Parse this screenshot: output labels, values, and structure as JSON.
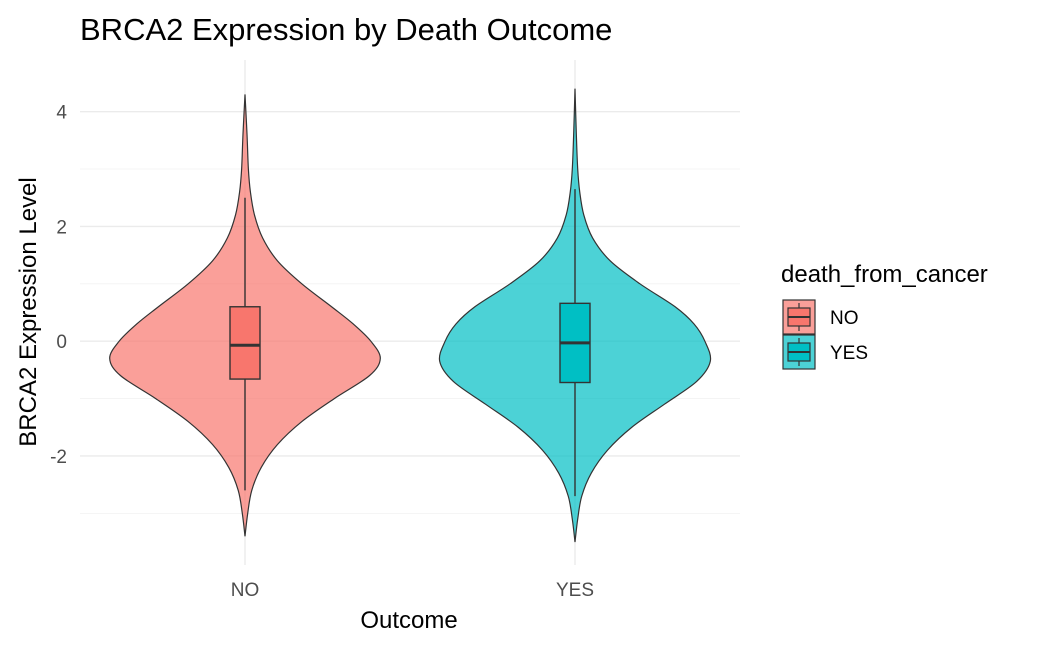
{
  "chart_data": {
    "type": "violin",
    "title": "BRCA2 Expression by Death Outcome",
    "xlabel": "Outcome",
    "ylabel": "BRCA2 Expression Level",
    "categories": [
      "NO",
      "YES"
    ],
    "ylim": [
      -3.9,
      4.9
    ],
    "yticks": [
      -2,
      0,
      2,
      4
    ],
    "grid": true,
    "legend": {
      "title": "death_from_cancer",
      "position": "right",
      "entries": [
        "NO",
        "YES"
      ]
    },
    "colors": {
      "NO": "#F8766D",
      "YES": "#00BFC4"
    },
    "series": [
      {
        "name": "NO",
        "range": [
          -3.4,
          4.3
        ],
        "box": {
          "q1": -0.66,
          "median": -0.07,
          "q3": 0.6,
          "whisker_low": -2.6,
          "whisker_high": 2.5
        },
        "density": [
          [
            -3.4,
            0.0
          ],
          [
            -3.0,
            0.02
          ],
          [
            -2.6,
            0.05
          ],
          [
            -2.2,
            0.12
          ],
          [
            -1.8,
            0.24
          ],
          [
            -1.4,
            0.42
          ],
          [
            -1.0,
            0.66
          ],
          [
            -0.6,
            0.92
          ],
          [
            -0.3,
            1.0
          ],
          [
            0.0,
            0.93
          ],
          [
            0.3,
            0.8
          ],
          [
            0.6,
            0.64
          ],
          [
            1.0,
            0.42
          ],
          [
            1.4,
            0.24
          ],
          [
            1.8,
            0.13
          ],
          [
            2.2,
            0.07
          ],
          [
            2.6,
            0.04
          ],
          [
            3.0,
            0.025
          ],
          [
            3.6,
            0.015
          ],
          [
            4.3,
            0.0
          ]
        ]
      },
      {
        "name": "YES",
        "range": [
          -3.5,
          4.4
        ],
        "box": {
          "q1": -0.72,
          "median": -0.03,
          "q3": 0.66,
          "whisker_low": -2.7,
          "whisker_high": 2.65
        },
        "density": [
          [
            -3.5,
            0.0
          ],
          [
            -3.1,
            0.02
          ],
          [
            -2.7,
            0.05
          ],
          [
            -2.3,
            0.12
          ],
          [
            -1.9,
            0.24
          ],
          [
            -1.5,
            0.42
          ],
          [
            -1.1,
            0.66
          ],
          [
            -0.7,
            0.9
          ],
          [
            -0.35,
            1.0
          ],
          [
            0.0,
            0.96
          ],
          [
            0.3,
            0.88
          ],
          [
            0.6,
            0.74
          ],
          [
            1.0,
            0.48
          ],
          [
            1.4,
            0.26
          ],
          [
            1.8,
            0.13
          ],
          [
            2.2,
            0.065
          ],
          [
            2.6,
            0.035
          ],
          [
            3.0,
            0.02
          ],
          [
            3.6,
            0.01
          ],
          [
            4.4,
            0.0
          ]
        ]
      }
    ]
  }
}
